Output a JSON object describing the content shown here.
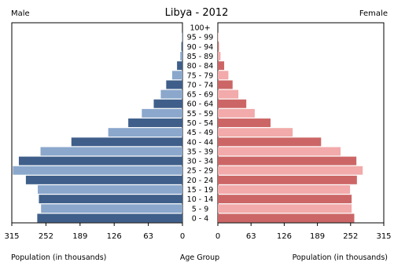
{
  "chart_data": {
    "type": "bar",
    "title": "Libya - 2012",
    "left_label": "Male",
    "right_label": "Female",
    "xlabel_left": "Population (in thousands)",
    "xlabel_center": "Age Group",
    "xlabel_right": "Population (in thousands)",
    "xlim": [
      0,
      315
    ],
    "xticks": [
      315,
      252,
      189,
      126,
      63,
      0
    ],
    "xticks_right": [
      0,
      63,
      126,
      189,
      252,
      315
    ],
    "categories": [
      "100+",
      "95 - 99",
      "90 - 94",
      "85 - 89",
      "80 - 84",
      "75 - 79",
      "70 - 74",
      "65 - 69",
      "60 - 64",
      "55 - 59",
      "50 - 54",
      "45 - 49",
      "40 - 44",
      "35 - 39",
      "30 - 34",
      "25 - 29",
      "20 - 24",
      "15 - 19",
      "10 - 14",
      "5 - 9",
      "0 - 4"
    ],
    "series": [
      {
        "name": "Male",
        "values": [
          0,
          1,
          2,
          4,
          10,
          19,
          30,
          40,
          53,
          75,
          100,
          137,
          205,
          262,
          302,
          313,
          289,
          267,
          265,
          261,
          268
        ]
      },
      {
        "name": "Female",
        "values": [
          0,
          1,
          2,
          5,
          12,
          20,
          28,
          39,
          54,
          70,
          100,
          142,
          196,
          233,
          263,
          275,
          264,
          251,
          254,
          254,
          259
        ]
      }
    ],
    "colors": {
      "male_dark": "#3f5f8a",
      "male_light": "#8ba7cc",
      "female_dark": "#cc6666",
      "female_light": "#f2aaaa"
    },
    "grid": false
  }
}
